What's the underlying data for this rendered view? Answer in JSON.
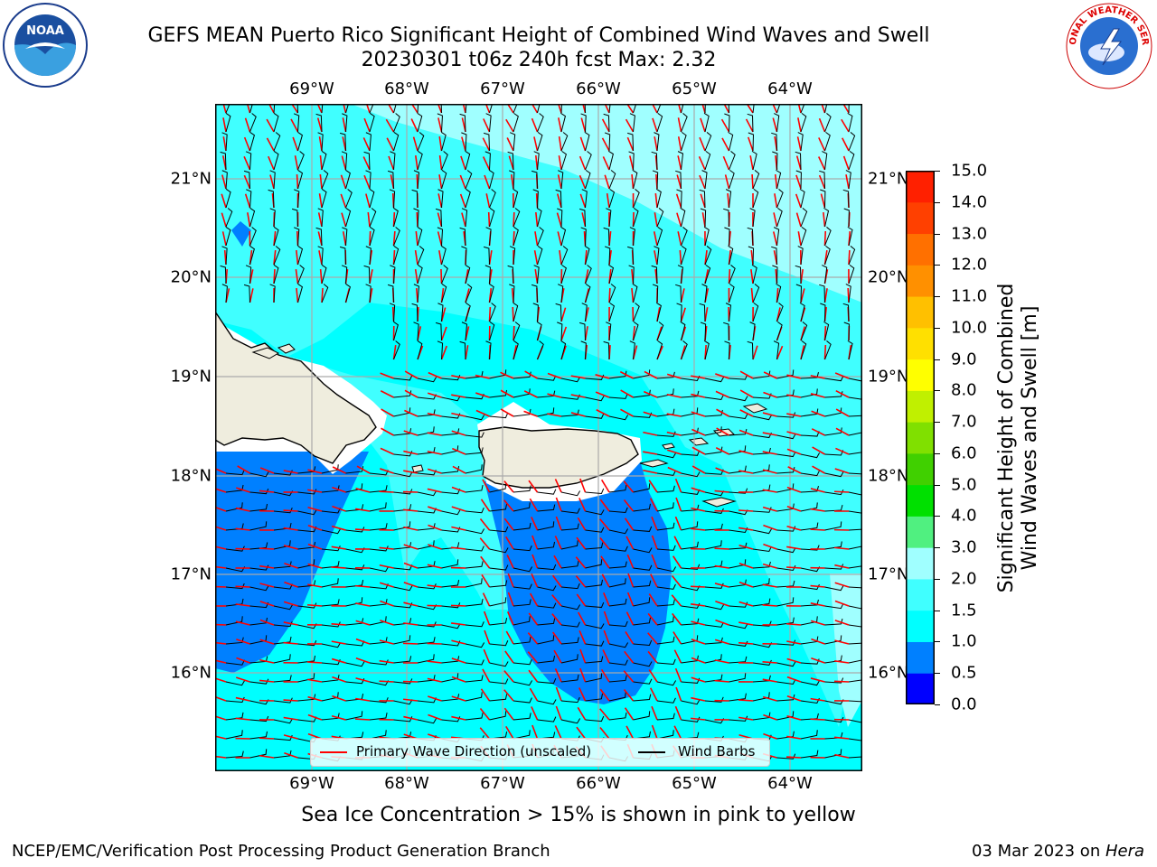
{
  "header": {
    "title_line1": "GEFS MEAN Puerto Rico Significant Height of Combined Wind Waves and Swell",
    "title_line2": "20230301 t06z 240h fcst   Max: 2.32"
  },
  "map": {
    "lon_ticks": [
      "69°W",
      "68°W",
      "67°W",
      "66°W",
      "65°W",
      "64°W"
    ],
    "lat_ticks": [
      "21°N",
      "20°N",
      "19°N",
      "18°N",
      "17°N",
      "16°N"
    ],
    "lon_range": [
      -70,
      -63.3
    ],
    "lat_range": [
      15.0,
      21.75
    ],
    "legend": {
      "wave_direction": "Primary Wave Direction (unscaled)",
      "wind_barbs": "Wind Barbs"
    },
    "colors": {
      "land": "#efedde",
      "wave_arrow": "#ff0000",
      "wind_barb": "#000000"
    }
  },
  "colorbar": {
    "label_line1": "Significant Height of Combined",
    "label_line2": "Wind Waves and Swell [m]",
    "ticks": [
      "0.0",
      "0.5",
      "1.0",
      "1.5",
      "2.0",
      "3.0",
      "4.0",
      "5.0",
      "6.0",
      "7.0",
      "8.0",
      "9.0",
      "10.0",
      "11.0",
      "12.0",
      "13.0",
      "14.0",
      "15.0"
    ],
    "bin_colors": [
      "#0000ff",
      "#0080ff",
      "#00ffff",
      "#40ffff",
      "#a0ffff",
      "#50f080",
      "#00e000",
      "#40d000",
      "#80e000",
      "#c0f000",
      "#ffff00",
      "#ffe000",
      "#ffc000",
      "#ff9000",
      "#ff7000",
      "#ff4000",
      "#ff2000"
    ]
  },
  "notes": {
    "ice": "Sea Ice Concentration > 15% is shown in pink to yellow"
  },
  "footer": {
    "left": "NCEP/EMC/Verification Post Processing Product Generation Branch",
    "date": "03 Mar 2023 on ",
    "host": "Hera"
  },
  "logos": {
    "noaa": "NOAA",
    "nws": "NATIONAL WEATHER SERVICE"
  }
}
